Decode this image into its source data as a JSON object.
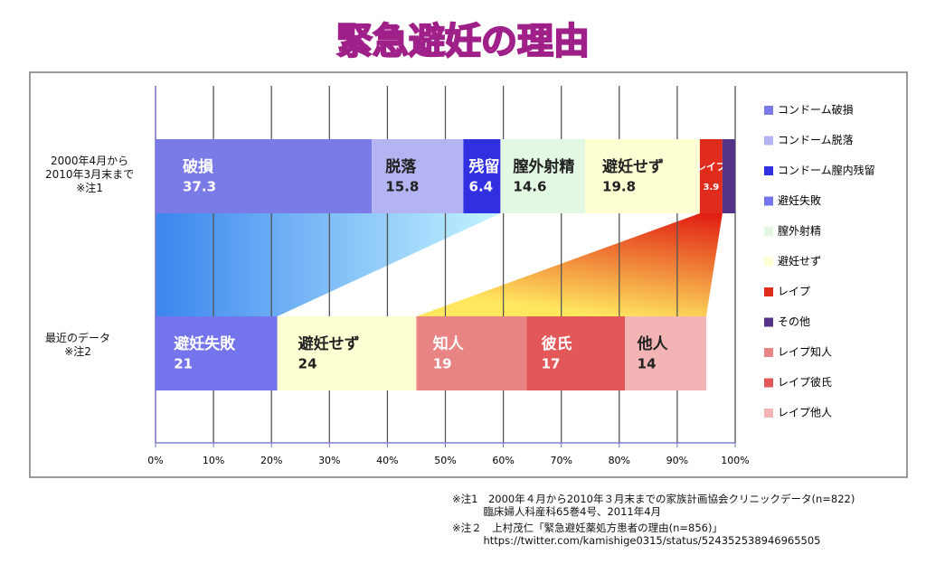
{
  "chart_data": {
    "type": "stacked-bar-horizontal",
    "title": "緊急避妊の理由",
    "categories": [
      "2000年4月から\n2010年3月末まで\n※注1",
      "最近のデータ\n※注2"
    ],
    "xlim": [
      0,
      100
    ],
    "xticks": [
      {
        "value": 0,
        "label": "0%"
      },
      {
        "value": 10,
        "label": "10%"
      },
      {
        "value": 20,
        "label": "20%"
      },
      {
        "value": 30,
        "label": "30%"
      },
      {
        "value": 40,
        "label": "40%"
      },
      {
        "value": 50,
        "label": "50%"
      },
      {
        "value": 60,
        "label": "60%"
      },
      {
        "value": 70,
        "label": "70%"
      },
      {
        "value": 80,
        "label": "80%"
      },
      {
        "value": 90,
        "label": "90%"
      },
      {
        "value": 100,
        "label": "100%"
      }
    ],
    "grid": true,
    "series": [
      {
        "name": "コンドーム破損",
        "color": "#7b7be8",
        "values": [
          37.3,
          null
        ],
        "segment_labels": [
          "破損",
          null
        ]
      },
      {
        "name": "コンドーム脱落",
        "color": "#b4b4f2",
        "values": [
          15.8,
          null
        ],
        "segment_labels": [
          "脱落",
          null
        ]
      },
      {
        "name": "コンドーム膣内残留",
        "color": "#3030e0",
        "values": [
          6.4,
          null
        ],
        "segment_labels": [
          "残留",
          null
        ]
      },
      {
        "name": "避妊失敗",
        "color": "#7474ec",
        "values": [
          null,
          21
        ],
        "segment_labels": [
          null,
          "避妊失敗"
        ]
      },
      {
        "name": "膣外射精",
        "color": "#e2f8e2",
        "values": [
          14.6,
          null
        ],
        "segment_labels": [
          "膣外射精",
          null
        ]
      },
      {
        "name": "避妊せず",
        "color": "#ffffd4",
        "values": [
          19.8,
          24
        ],
        "segment_labels": [
          "避妊せず",
          "避妊せず"
        ]
      },
      {
        "name": "レイプ",
        "color": "#e02c1c",
        "values": [
          3.9,
          null
        ],
        "segment_labels": [
          "レイプ",
          null
        ]
      },
      {
        "name": "その他",
        "color": "#553388",
        "values": [
          2.2,
          null
        ],
        "segment_labels": [
          null,
          null
        ]
      },
      {
        "name": "レイプ知人",
        "color": "#e88484",
        "values": [
          null,
          19
        ],
        "segment_labels": [
          null,
          "知人"
        ]
      },
      {
        "name": "レイプ彼氏",
        "color": "#e25858",
        "values": [
          null,
          17
        ],
        "segment_labels": [
          null,
          "彼氏"
        ]
      },
      {
        "name": "レイプ他人",
        "color": "#f2b4b4",
        "values": [
          null,
          14
        ],
        "segment_labels": [
          null,
          "他人"
        ]
      }
    ],
    "notes": [
      "※注1　2000年４月から2010年３月末までの家族計画協会クリニックデータ(n=822)\n　　　臨床婦人科産科65巻4号、2011年4月",
      "※注２　上村茂仁「緊急避妊薬処方患者の理由(n=856)」\n　　　https://twitter.com/kamishige0315/status/524352538946965505"
    ]
  }
}
